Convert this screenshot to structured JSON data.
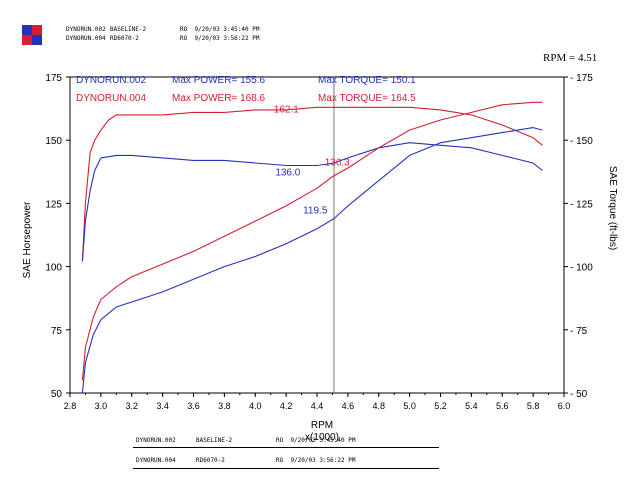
{
  "header": {
    "runs": [
      {
        "id": "DYNORUN.002",
        "name": "BASELINE-2",
        "stamp": "RO  9/20/03 3:45:40 PM",
        "color": "#2233bb"
      },
      {
        "id": "DYNORUN.004",
        "name": "RD6070-2",
        "stamp": "RO  9/20/03 3:56:22 PM",
        "color": "#d42030"
      }
    ],
    "rpm_readout": "RPM = 4.51"
  },
  "legend": {
    "run1_label": "DYNORUN.002",
    "run1_power": "Max POWER= 155.6",
    "run1_torque": "Max TORQUE= 150.1",
    "run2_label": "DYNORUN.004",
    "run2_power": "Max POWER= 168.6",
    "run2_torque": "Max TORQUE= 164.5"
  },
  "footer": {
    "rows": [
      {
        "id": "DYNORUN.002",
        "name": "BASELINE-2",
        "stamp": "RO  9/20/03 3:45:40 PM"
      },
      {
        "id": "DYNORUN.004",
        "name": "RD6070-2",
        "stamp": "RO  9/20/03 3:56:22 PM"
      }
    ]
  },
  "chart_data": {
    "type": "line",
    "xlabel": "RPM",
    "xlabel_unit": "x(1000)",
    "ylabel_left": "SAE Horsepower",
    "ylabel_right": "SAE Torque (ft-lbs)",
    "xlim": [
      2.8,
      6.0
    ],
    "ylim": [
      50,
      175
    ],
    "xticks": [
      2.8,
      3.0,
      3.2,
      3.4,
      3.6,
      3.8,
      4.0,
      4.2,
      4.4,
      4.6,
      4.8,
      5.0,
      5.2,
      5.4,
      5.6,
      5.8,
      6.0
    ],
    "xtick_labels": [
      "2.8",
      "3.0",
      "3.2",
      "3.4",
      "3.6",
      "3.8",
      "4.0",
      "4.2",
      "4.4",
      "4.6",
      "4.8",
      "5.0",
      "5.2",
      "5.4",
      "5.6",
      "5.8",
      "6.0"
    ],
    "yticks": [
      50,
      75,
      100,
      125,
      150,
      175
    ],
    "ytick_labels": [
      "50",
      "75",
      "100",
      "125",
      "150",
      "175"
    ],
    "cursor_x": 4.51,
    "series": [
      {
        "name": "DYNORUN.004 power",
        "color": "#d42030",
        "x": [
          2.88,
          2.9,
          2.93,
          2.96,
          3.0,
          3.05,
          3.1,
          3.2,
          3.4,
          3.6,
          3.8,
          4.0,
          4.2,
          4.4,
          4.51,
          4.6,
          4.8,
          5.0,
          5.2,
          5.4,
          5.6,
          5.8,
          5.86
        ],
        "y": [
          102,
          125,
          145,
          150,
          154,
          158,
          160,
          160,
          160,
          161,
          161,
          162,
          162,
          163,
          163,
          163,
          163,
          163,
          162,
          160,
          156,
          151,
          148
        ]
      },
      {
        "name": "DYNORUN.002 power",
        "color": "#2233bb",
        "x": [
          2.88,
          2.9,
          2.93,
          2.96,
          3.0,
          3.1,
          3.2,
          3.4,
          3.6,
          3.8,
          4.0,
          4.2,
          4.4,
          4.51,
          4.6,
          4.8,
          5.0,
          5.2,
          5.4,
          5.6,
          5.8,
          5.86
        ],
        "y": [
          102,
          118,
          130,
          138,
          143,
          144,
          144,
          143,
          142,
          142,
          141,
          140,
          140,
          141,
          143,
          147,
          149,
          148,
          147,
          144,
          141,
          138
        ]
      },
      {
        "name": "DYNORUN.004 torque",
        "color": "#d42030",
        "x": [
          2.88,
          2.9,
          2.95,
          3.0,
          3.1,
          3.2,
          3.4,
          3.6,
          3.8,
          4.0,
          4.2,
          4.4,
          4.51,
          4.6,
          4.8,
          5.0,
          5.2,
          5.4,
          5.6,
          5.8,
          5.86
        ],
        "y": [
          55,
          68,
          80,
          87,
          92,
          96,
          101,
          106,
          112,
          118,
          124,
          131,
          136,
          139,
          147,
          154,
          158,
          161,
          164,
          165,
          165
        ]
      },
      {
        "name": "DYNORUN.002 torque",
        "color": "#2233bb",
        "x": [
          2.88,
          2.9,
          2.95,
          3.0,
          3.1,
          3.2,
          3.4,
          3.6,
          3.8,
          4.0,
          4.2,
          4.4,
          4.51,
          4.6,
          4.8,
          5.0,
          5.2,
          5.4,
          5.6,
          5.8,
          5.86
        ],
        "y": [
          50,
          62,
          73,
          79,
          84,
          86,
          90,
          95,
          100,
          104,
          109,
          115,
          119,
          124,
          134,
          144,
          149,
          151,
          153,
          155,
          154
        ]
      }
    ],
    "annotations": [
      {
        "text": "162.1",
        "x": 4.12,
        "y": 161,
        "color": "#d42030"
      },
      {
        "text": "136.3",
        "x": 4.45,
        "y": 140,
        "color": "#d42030"
      },
      {
        "text": "136.0",
        "x": 4.13,
        "y": 136,
        "color": "#2233bb"
      },
      {
        "text": "119.5",
        "x": 4.31,
        "y": 121,
        "color": "#2233bb"
      }
    ]
  }
}
